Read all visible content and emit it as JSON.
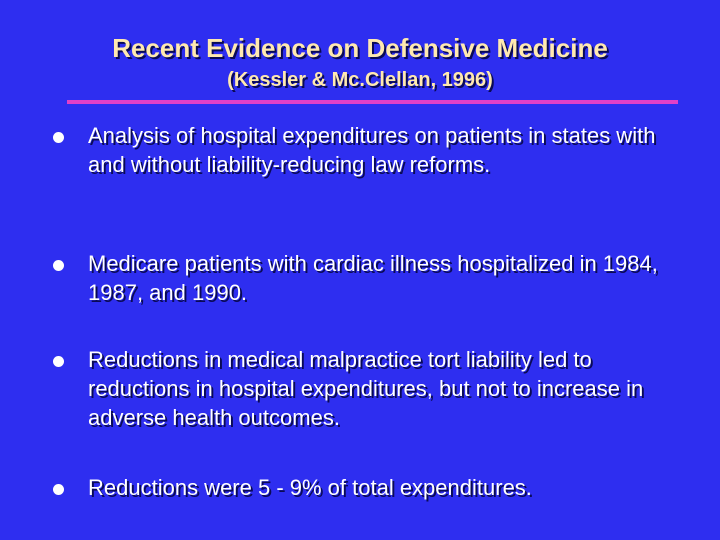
{
  "slide": {
    "title": "Recent Evidence on Defensive Medicine",
    "subtitle": "(Kessler & Mc.Clellan, 1996)",
    "bullets": [
      "Analysis of hospital expenditures on patients in states with and without liability-reducing law reforms.",
      "Medicare patients with cardiac illness hospitalized in 1984, 1987, and 1990.",
      "Reductions in medical malpractice tort liability led to reductions in hospital expenditures, but not to increase in adverse health outcomes.",
      "Reductions were 5 - 9% of total expenditures."
    ]
  },
  "colors": {
    "background": "#2E2EF0",
    "title": "#FFE9B0",
    "divider": "#E040C8",
    "body_text": "#FFFFFF"
  }
}
